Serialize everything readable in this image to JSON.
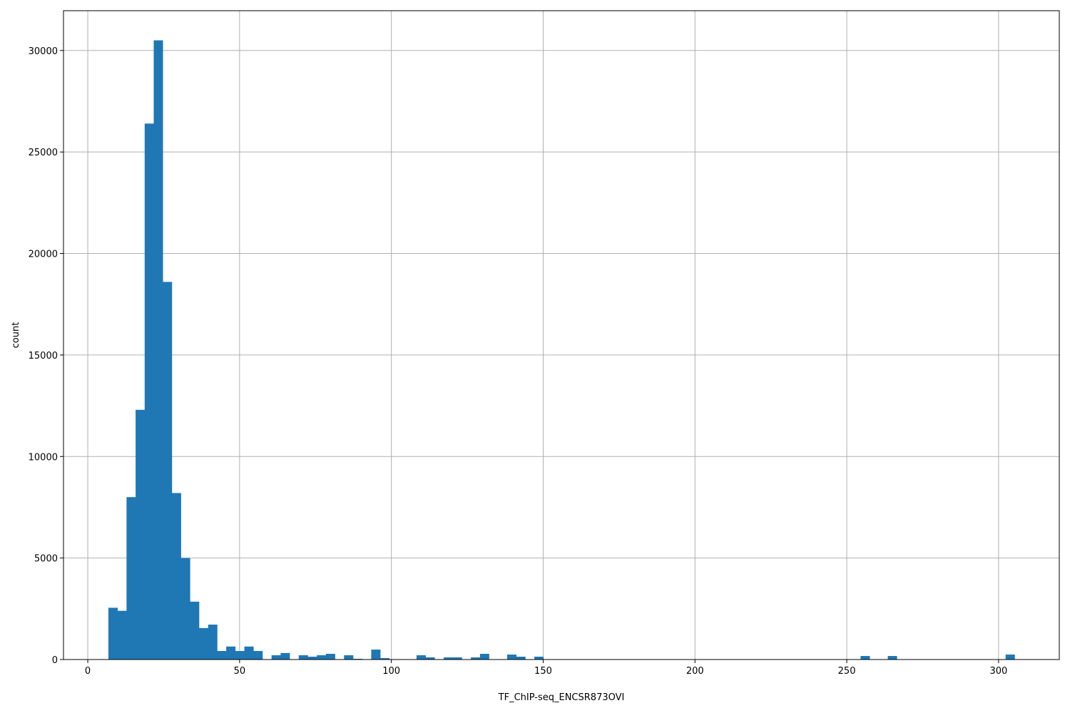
{
  "chart_data": {
    "type": "bar",
    "subtype": "histogram",
    "title": "",
    "xlabel": "TF_ChIP-seq_ENCSR873OVI",
    "ylabel": "count",
    "xlim": [
      -8,
      320
    ],
    "ylim": [
      0,
      31960
    ],
    "grid": true,
    "bar_color": "#1f77b4",
    "grid_color": "#b0b0b0",
    "x_ticks": [
      0,
      50,
      100,
      150,
      200,
      250,
      300
    ],
    "x_tick_labels": [
      "0",
      "50",
      "100",
      "150",
      "200",
      "250",
      "300"
    ],
    "y_ticks": [
      0,
      5000,
      10000,
      15000,
      20000,
      25000,
      30000
    ],
    "y_tick_labels": [
      "0",
      "5000",
      "10000",
      "15000",
      "20000",
      "25000",
      "30000"
    ],
    "bin_start": 6.8,
    "bin_width": 2.985,
    "counts": [
      2550,
      2400,
      8000,
      12300,
      26400,
      30500,
      18600,
      8200,
      5000,
      2850,
      1550,
      1720,
      420,
      640,
      420,
      640,
      420,
      0,
      210,
      320,
      0,
      210,
      140,
      210,
      280,
      0,
      210,
      35,
      0,
      490,
      70,
      0,
      0,
      0,
      210,
      105,
      0,
      105,
      105,
      0,
      105,
      280,
      0,
      0,
      245,
      140,
      0,
      140,
      0,
      0,
      0,
      0,
      0,
      0,
      0,
      0,
      0,
      0,
      0,
      0,
      0,
      0,
      0,
      0,
      0,
      0,
      0,
      0,
      0,
      0,
      0,
      0,
      0,
      0,
      0,
      0,
      0,
      0,
      0,
      0,
      0,
      0,
      0,
      175,
      0,
      0,
      175,
      0,
      0,
      0,
      0,
      0,
      0,
      0,
      0,
      0,
      0,
      0,
      0,
      245
    ]
  }
}
